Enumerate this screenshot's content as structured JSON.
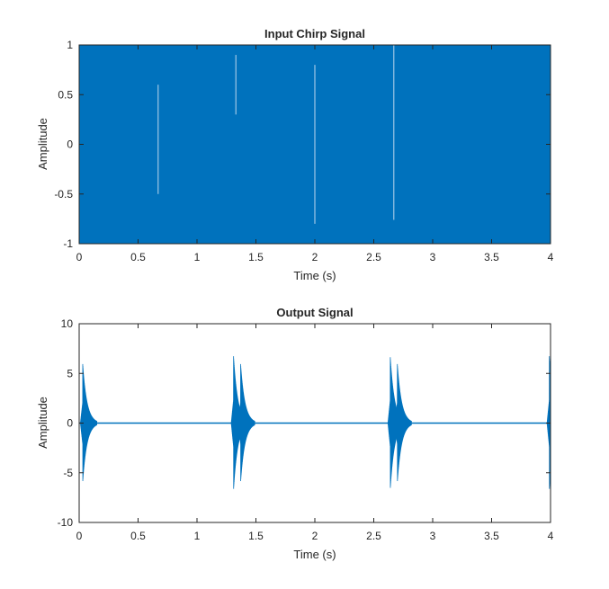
{
  "colors": {
    "signal": "#0072bd",
    "axis": "#262626",
    "background": "#ffffff"
  },
  "chart_data": [
    {
      "type": "line",
      "title": "Input Chirp Signal",
      "xlabel": "Time (s)",
      "ylabel": "Amplitude",
      "xlim": [
        0,
        4
      ],
      "ylim": [
        -1,
        1
      ],
      "xticks": [
        "0",
        "0.5",
        "1",
        "1.5",
        "2",
        "2.5",
        "3",
        "3.5",
        "4"
      ],
      "yticks": [
        "1",
        "0.5",
        "0",
        "-0.5",
        "-1"
      ],
      "grid": false,
      "series": [
        {
          "description": "Dense chirp oscillation filling the amplitude range -1 to 1 over 0–4 s",
          "amplitude": 1,
          "visible_gaps_at_s": [
            0.67,
            1.33,
            2.0,
            2.67
          ]
        }
      ]
    },
    {
      "type": "line",
      "title": "Output Signal",
      "xlabel": "Time (s)",
      "ylabel": "Amplitude",
      "xlim": [
        0,
        4
      ],
      "ylim": [
        -10,
        10
      ],
      "xticks": [
        "0",
        "0.5",
        "1",
        "1.5",
        "2",
        "2.5",
        "3",
        "3.5",
        "4"
      ],
      "yticks": [
        "10",
        "5",
        "0",
        "-5",
        "-10"
      ],
      "grid": false,
      "series": [
        {
          "bursts": [
            {
              "t": 0.03,
              "peak": 6.0
            },
            {
              "t": 1.31,
              "peak": 6.8
            },
            {
              "t": 1.37,
              "peak": 6.0
            },
            {
              "t": 2.64,
              "peak": 6.7
            },
            {
              "t": 2.7,
              "peak": 6.0
            },
            {
              "t": 3.99,
              "peak": 6.8
            }
          ],
          "baseline": 0
        }
      ]
    }
  ]
}
